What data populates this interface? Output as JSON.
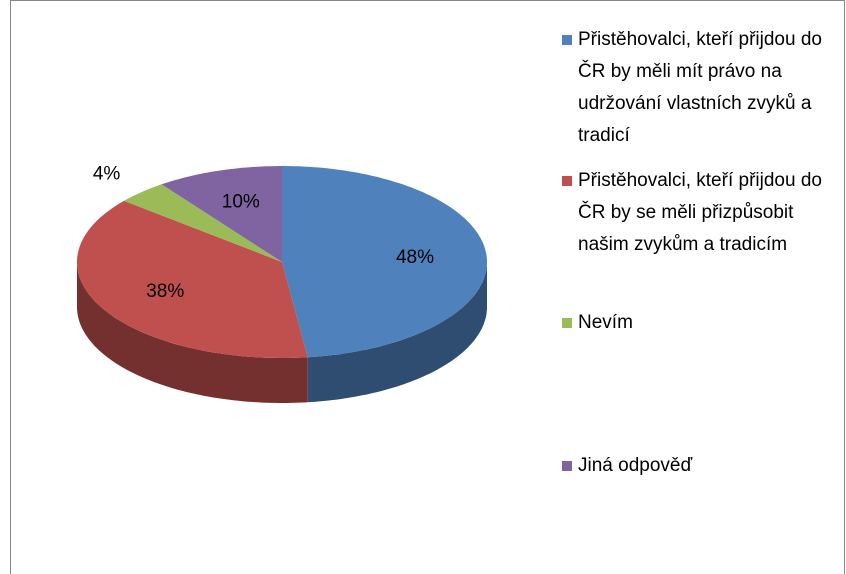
{
  "chart_data": {
    "type": "pie",
    "categories": [
      "Přistěhovalci, kteří přijdou do ČR by měli mít právo na udržování vlastních zvyků a tradicí",
      "Přistěhovalci, kteří přijdou do ČR by se měli přizpůsobit našim zvykům a tradicím",
      "Nevím",
      "Jiná odpověď"
    ],
    "values": [
      48,
      38,
      4,
      10
    ],
    "value_labels": [
      "48%",
      "38%",
      "4%",
      "10%"
    ],
    "colors": [
      "#4f81bd",
      "#c0504d",
      "#9bbb59",
      "#8064a2"
    ],
    "legend": "right"
  }
}
